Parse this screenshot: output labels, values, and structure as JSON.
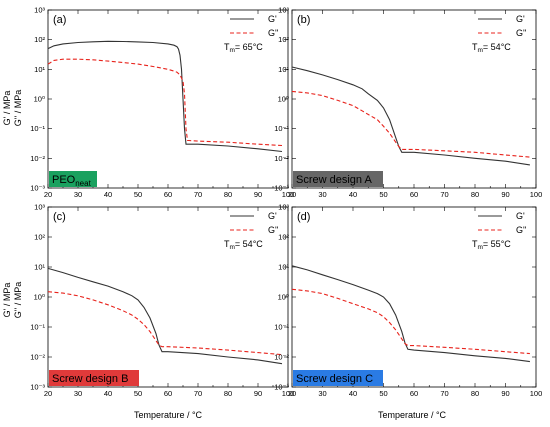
{
  "y_axis_label": {
    "line1": "G' / MPa",
    "line2": "G'' / MPa"
  },
  "x_axis_label": "Temperature / °C",
  "legend": {
    "gp": "G'",
    "gpp": "G''"
  },
  "colors": {
    "gp": "#333333",
    "gpp": "#e8231c"
  },
  "chart_data": [
    {
      "type": "line",
      "panel": "(a)",
      "badge": "PEO",
      "badge_sub": "neat",
      "badge_color": "#1aa15f",
      "tm_label": "T",
      "tm_sub": "m",
      "tm_value": "= 65°C",
      "xlim": [
        20,
        100
      ],
      "ylim": [
        0.001,
        1000
      ],
      "yscale": "log",
      "x_ticks": [
        "20",
        "30",
        "40",
        "50",
        "60",
        "70",
        "80",
        "90",
        "100"
      ],
      "y_ticks": [
        "10⁻³",
        "10⁻²",
        "10⁻¹",
        "10⁰",
        "10¹",
        "10²",
        "10³"
      ],
      "series": [
        {
          "name": "G'",
          "x": [
            20,
            22,
            25,
            30,
            35,
            40,
            45,
            50,
            55,
            60,
            62,
            63,
            63.5,
            64,
            64.5,
            65,
            65.5,
            66,
            70,
            80,
            90,
            98
          ],
          "y": [
            50,
            62,
            72,
            80,
            85,
            88,
            87,
            84,
            80,
            72,
            65,
            58,
            48,
            30,
            10,
            1,
            0.1,
            0.03,
            0.03,
            0.026,
            0.021,
            0.017
          ]
        },
        {
          "name": "G''",
          "x": [
            20,
            22,
            25,
            30,
            35,
            40,
            45,
            50,
            55,
            60,
            62,
            63,
            64,
            65,
            65.5,
            66,
            66.5,
            67,
            70,
            80,
            90,
            98
          ],
          "y": [
            15,
            20,
            22,
            22,
            21,
            19,
            17,
            15,
            12.5,
            10,
            8.7,
            8,
            6.5,
            4,
            1.5,
            0.1,
            0.04,
            0.04,
            0.038,
            0.035,
            0.03,
            0.027
          ]
        }
      ]
    },
    {
      "type": "line",
      "panel": "(b)",
      "badge": "Screw design A",
      "badge_sub": "",
      "badge_color": "#666666",
      "tm_label": "T",
      "tm_sub": "m",
      "tm_value": "= 54°C",
      "xlim": [
        20,
        100
      ],
      "ylim": [
        0.001,
        1000
      ],
      "yscale": "log",
      "x_ticks": [
        "20",
        "30",
        "40",
        "50",
        "60",
        "70",
        "80",
        "90",
        "100"
      ],
      "y_ticks": [
        "10⁻³",
        "10⁻²",
        "10⁻¹",
        "10⁰",
        "10¹",
        "10²",
        "10³"
      ],
      "series": [
        {
          "name": "G'",
          "x": [
            20,
            25,
            30,
            35,
            40,
            43,
            45,
            48,
            50,
            52,
            54,
            55,
            56,
            60,
            70,
            80,
            90,
            98
          ],
          "y": [
            12,
            9,
            6.5,
            4.5,
            3,
            2.2,
            1.5,
            0.9,
            0.5,
            0.2,
            0.05,
            0.025,
            0.016,
            0.016,
            0.013,
            0.01,
            0.008,
            0.006
          ]
        },
        {
          "name": "G''",
          "x": [
            20,
            25,
            30,
            35,
            40,
            43,
            45,
            48,
            50,
            52,
            54,
            55,
            56,
            60,
            70,
            80,
            90,
            98
          ],
          "y": [
            1.8,
            1.6,
            1.3,
            0.9,
            0.6,
            0.4,
            0.3,
            0.2,
            0.12,
            0.07,
            0.035,
            0.025,
            0.02,
            0.02,
            0.018,
            0.016,
            0.013,
            0.011
          ]
        }
      ]
    },
    {
      "type": "line",
      "panel": "(c)",
      "badge": "Screw design B",
      "badge_sub": "",
      "badge_color": "#e03a3a",
      "tm_label": "T",
      "tm_sub": "m",
      "tm_value": "= 54°C",
      "xlim": [
        20,
        100
      ],
      "ylim": [
        0.001,
        1000
      ],
      "yscale": "log",
      "x_ticks": [
        "20",
        "30",
        "40",
        "50",
        "60",
        "70",
        "80",
        "90",
        "100"
      ],
      "y_ticks": [
        "10⁻³",
        "10⁻²",
        "10⁻¹",
        "10⁰",
        "10¹",
        "10²",
        "10³"
      ],
      "series": [
        {
          "name": "G'",
          "x": [
            20,
            25,
            30,
            35,
            40,
            45,
            48,
            50,
            52,
            54,
            56,
            57,
            58,
            60,
            70,
            80,
            90,
            98
          ],
          "y": [
            9,
            6.5,
            4.5,
            3.2,
            2.3,
            1.5,
            1.1,
            0.8,
            0.45,
            0.2,
            0.06,
            0.025,
            0.015,
            0.015,
            0.013,
            0.01,
            0.008,
            0.006
          ]
        },
        {
          "name": "G''",
          "x": [
            20,
            25,
            30,
            35,
            40,
            45,
            48,
            50,
            52,
            54,
            56,
            57,
            58,
            60,
            70,
            80,
            90,
            98
          ],
          "y": [
            1.5,
            1.35,
            1.1,
            0.8,
            0.55,
            0.35,
            0.25,
            0.18,
            0.12,
            0.07,
            0.035,
            0.025,
            0.022,
            0.022,
            0.02,
            0.017,
            0.014,
            0.012
          ]
        }
      ]
    },
    {
      "type": "line",
      "panel": "(d)",
      "badge": "Screw design C",
      "badge_sub": "",
      "badge_color": "#2a7be4",
      "tm_label": "T",
      "tm_sub": "m",
      "tm_value": "= 55°C",
      "xlim": [
        20,
        100
      ],
      "ylim": [
        0.001,
        1000
      ],
      "yscale": "log",
      "x_ticks": [
        "20",
        "30",
        "40",
        "50",
        "60",
        "70",
        "80",
        "90",
        "100"
      ],
      "y_ticks": [
        "10⁻³",
        "10⁻²",
        "10⁻¹",
        "10⁰",
        "10¹",
        "10²",
        "10³"
      ],
      "series": [
        {
          "name": "G'",
          "x": [
            20,
            25,
            30,
            35,
            40,
            45,
            48,
            50,
            52,
            54,
            56,
            57,
            58,
            60,
            70,
            80,
            90,
            98
          ],
          "y": [
            11,
            8,
            5.5,
            3.8,
            2.6,
            1.7,
            1.3,
            1,
            0.6,
            0.25,
            0.07,
            0.03,
            0.018,
            0.017,
            0.014,
            0.011,
            0.009,
            0.007
          ]
        },
        {
          "name": "G''",
          "x": [
            20,
            25,
            30,
            35,
            40,
            45,
            48,
            50,
            52,
            54,
            56,
            57,
            58,
            60,
            70,
            80,
            90,
            98
          ],
          "y": [
            1.8,
            1.6,
            1.3,
            0.9,
            0.6,
            0.4,
            0.3,
            0.22,
            0.14,
            0.08,
            0.04,
            0.028,
            0.024,
            0.024,
            0.021,
            0.018,
            0.015,
            0.013
          ]
        }
      ]
    }
  ]
}
